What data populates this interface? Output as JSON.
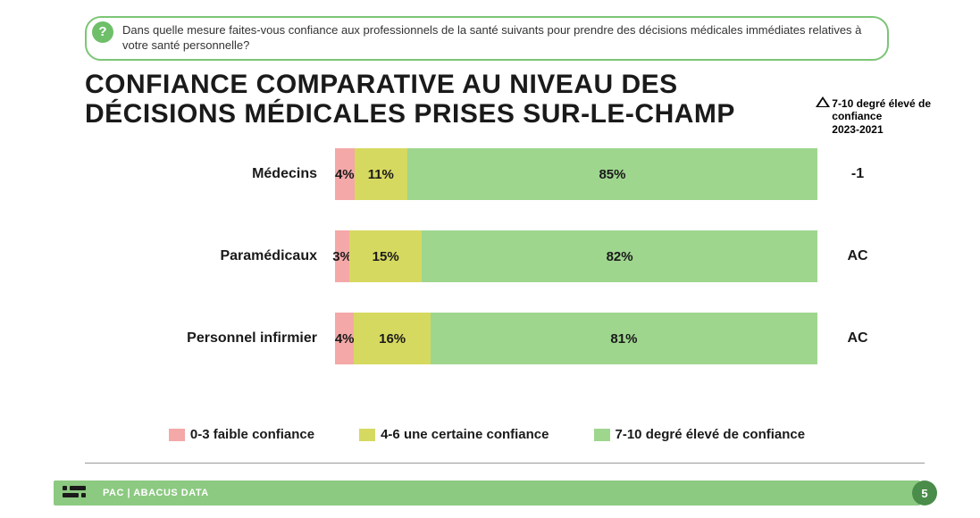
{
  "question": {
    "icon": "?",
    "text": "Dans quelle mesure faites-vous confiance aux professionnels de la santé suivants pour prendre des décisions médicales immédiates relatives à votre santé personnelle?"
  },
  "title": "CONFIANCE COMPARATIVE AU NIVEAU DES DÉCISIONS MÉDICALES PRISES SUR-LE-CHAMP",
  "delta_header": {
    "line1": "7-10 degré élevé de",
    "line2": "confiance",
    "line3": "2023-2021"
  },
  "chart": {
    "type": "stacked-horizontal-bar",
    "colors": {
      "low": "#f4a8a8",
      "mid": "#d6d95f",
      "high": "#9edx68e"
    },
    "color_low": "#f4a8a8",
    "color_mid": "#d6d95f",
    "color_high": "#9ed68e",
    "rows": [
      {
        "label": "Médecins",
        "low": 4,
        "mid": 11,
        "high": 85,
        "delta": "-1"
      },
      {
        "label": "Paramédicaux",
        "low": 3,
        "mid": 15,
        "high": 82,
        "delta": "AC"
      },
      {
        "label": "Personnel infirmier",
        "low": 4,
        "mid": 16,
        "high": 81,
        "delta": "AC"
      }
    ]
  },
  "legend": {
    "low": "0-3 faible confiance",
    "mid": "4-6 une certaine confiance",
    "high": "7-10 degré élevé de confiance"
  },
  "footer": {
    "text": "PAC | ABACUS DATA",
    "page": "5"
  }
}
